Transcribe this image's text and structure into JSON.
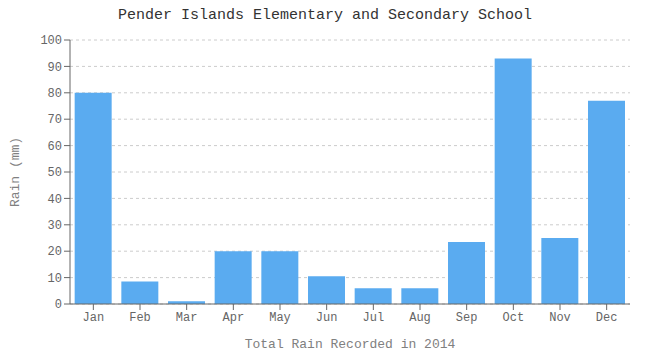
{
  "chart_data": {
    "type": "bar",
    "title": "Pender Islands Elementary and Secondary School",
    "xlabel": "Total Rain Recorded in 2014",
    "ylabel": "Rain (mm)",
    "categories": [
      "Jan",
      "Feb",
      "Mar",
      "Apr",
      "May",
      "Jun",
      "Jul",
      "Aug",
      "Sep",
      "Oct",
      "Nov",
      "Dec"
    ],
    "values": [
      80,
      8.5,
      1,
      20,
      20,
      10.5,
      6,
      6,
      23.5,
      93,
      25,
      77
    ],
    "color": "#5aabf0",
    "ylim": [
      0,
      100
    ],
    "yticks": [
      0,
      10,
      20,
      30,
      40,
      50,
      60,
      70,
      80,
      90,
      100
    ],
    "grid": true
  }
}
